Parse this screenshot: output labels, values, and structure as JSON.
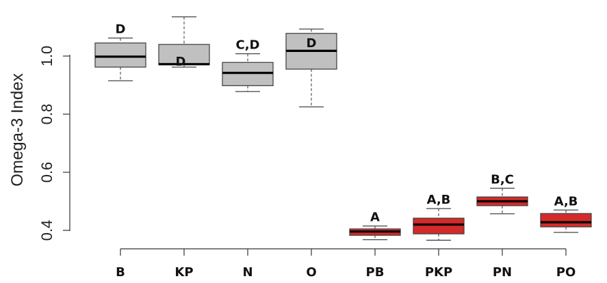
{
  "chart_data": {
    "type": "box",
    "xlabel": "",
    "ylabel": "Omega-3 Index",
    "ylim": [
      0.335,
      1.17
    ],
    "y_ticks": [
      0.4,
      0.6,
      0.8,
      1.0
    ],
    "y_tick_labels": [
      "0.4",
      "0.6",
      "0.8",
      "1.0"
    ],
    "categories": [
      "B",
      "KP",
      "N",
      "O",
      "PB",
      "PKP",
      "PN",
      "PO"
    ],
    "boxes": [
      {
        "category": "B",
        "min": 0.915,
        "q1": 0.962,
        "median": 0.998,
        "q3": 1.045,
        "max": 1.062,
        "group_label": "D",
        "color": "#c0c0c0"
      },
      {
        "category": "KP",
        "min": 0.962,
        "q1": 0.97,
        "median": 0.972,
        "q3": 1.04,
        "max": 1.135,
        "group_label": "D",
        "color": "#c0c0c0"
      },
      {
        "category": "N",
        "min": 0.878,
        "q1": 0.898,
        "median": 0.942,
        "q3": 0.978,
        "max": 1.008,
        "group_label": "C,D",
        "color": "#c0c0c0"
      },
      {
        "category": "O",
        "min": 0.825,
        "q1": 0.955,
        "median": 1.018,
        "q3": 1.078,
        "max": 1.093,
        "group_label": "D",
        "color": "#c0c0c0"
      },
      {
        "category": "PB",
        "min": 0.368,
        "q1": 0.383,
        "median": 0.396,
        "q3": 0.405,
        "max": 0.415,
        "group_label": "A",
        "color": "#d42a2a"
      },
      {
        "category": "PKP",
        "min": 0.366,
        "q1": 0.388,
        "median": 0.42,
        "q3": 0.442,
        "max": 0.475,
        "group_label": "A,B",
        "color": "#d42a2a"
      },
      {
        "category": "PN",
        "min": 0.457,
        "q1": 0.485,
        "median": 0.5,
        "q3": 0.515,
        "max": 0.545,
        "group_label": "B,C",
        "color": "#d42a2a"
      },
      {
        "category": "PO",
        "min": 0.393,
        "q1": 0.412,
        "median": 0.428,
        "q3": 0.458,
        "max": 0.47,
        "group_label": "A,B",
        "color": "#d42a2a"
      }
    ],
    "grid": false,
    "legend": "none"
  }
}
